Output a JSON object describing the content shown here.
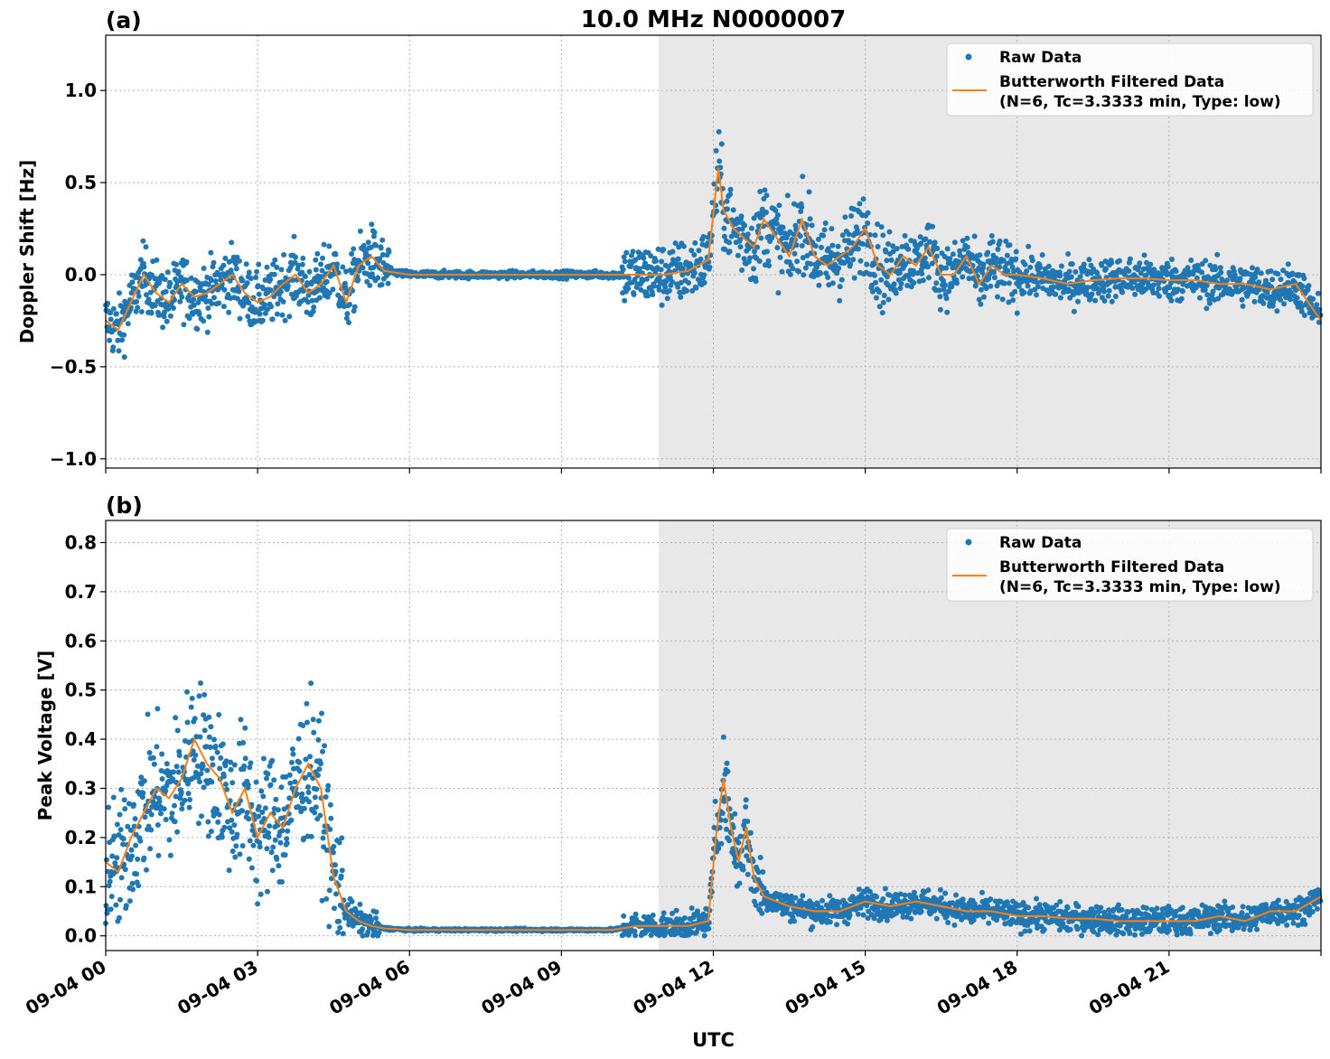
{
  "title": "10.0 MHz N0000007",
  "xlabel": "UTC",
  "x_ticks": [
    "09-04 00",
    "09-04 03",
    "09-04 06",
    "09-04 09",
    "09-04 12",
    "09-04 15",
    "09-04 18",
    "09-04 21"
  ],
  "x_tick_hours": [
    0,
    3,
    6,
    9,
    12,
    15,
    18,
    21
  ],
  "xlim_hours": [
    0,
    24
  ],
  "colors": {
    "raw": "#1f77b4",
    "filtered": "#ff7f0e",
    "night_shade": "#e8e8e8",
    "grid": "#b0b0b0"
  },
  "legend": {
    "raw_label": "Raw Data",
    "filtered_line1": "Butterworth Filtered Data",
    "filtered_line2": "(N=6, Tc=3.3333 min, Type: low)",
    "placement": "upper-right"
  },
  "shaded_region_hours": [
    10.92,
    24
  ],
  "chart_data": [
    {
      "type": "scatter",
      "panel_label": "(a)",
      "ylabel": "Doppler Shift [Hz]",
      "ylim": [
        -1.05,
        1.3
      ],
      "y_ticks": [
        -1.0,
        -0.5,
        0.0,
        0.5,
        1.0
      ],
      "y_tick_labels": [
        "−1.0",
        "−0.5",
        "0.0",
        "0.5",
        "1.0"
      ],
      "grid": true,
      "series": [
        {
          "name": "Butterworth Filtered Data",
          "x_hours": [
            0,
            0.25,
            0.5,
            0.75,
            1.0,
            1.25,
            1.5,
            1.75,
            2.0,
            2.25,
            2.5,
            2.75,
            3.0,
            3.25,
            3.5,
            3.75,
            4.0,
            4.25,
            4.5,
            4.75,
            5.0,
            5.25,
            5.5,
            6.0,
            7.0,
            8.0,
            9.0,
            10.0,
            10.5,
            11.0,
            11.5,
            11.9,
            12.1,
            12.2,
            12.4,
            12.6,
            12.8,
            13.0,
            13.25,
            13.5,
            13.75,
            14.0,
            14.25,
            14.5,
            14.75,
            15.0,
            15.25,
            15.5,
            15.75,
            16.0,
            16.25,
            16.5,
            16.75,
            17.0,
            17.25,
            17.5,
            17.75,
            18.0,
            18.5,
            19.0,
            19.5,
            20.0,
            20.5,
            21.0,
            21.5,
            22.0,
            22.5,
            23.0,
            23.5,
            24.0
          ],
          "y": [
            -0.25,
            -0.3,
            -0.15,
            0.0,
            -0.1,
            -0.15,
            -0.05,
            -0.12,
            -0.1,
            -0.05,
            0.0,
            -0.1,
            -0.15,
            -0.12,
            -0.05,
            0.0,
            -0.1,
            -0.05,
            0.05,
            -0.15,
            0.05,
            0.1,
            0.02,
            0.0,
            0.0,
            0.0,
            0.0,
            0.0,
            0.0,
            0.0,
            0.02,
            0.08,
            0.58,
            0.35,
            0.25,
            0.2,
            0.15,
            0.3,
            0.2,
            0.1,
            0.3,
            0.1,
            0.05,
            0.1,
            0.15,
            0.25,
            0.05,
            0.0,
            0.1,
            0.05,
            0.15,
            0.0,
            0.0,
            0.1,
            -0.05,
            0.05,
            0.0,
            0.0,
            -0.02,
            -0.05,
            -0.03,
            -0.02,
            -0.02,
            -0.03,
            -0.03,
            -0.05,
            -0.05,
            -0.08,
            -0.05,
            -0.25
          ]
        },
        {
          "name": "Raw Data",
          "kind": "points",
          "note_free": true
        }
      ]
    },
    {
      "type": "scatter",
      "panel_label": "(b)",
      "ylabel": "Peak Voltage [V]",
      "ylim": [
        -0.03,
        0.845
      ],
      "y_ticks": [
        0.0,
        0.1,
        0.2,
        0.3,
        0.4,
        0.5,
        0.6,
        0.7,
        0.8
      ],
      "y_tick_labels": [
        "0.0",
        "0.1",
        "0.2",
        "0.3",
        "0.4",
        "0.5",
        "0.6",
        "0.7",
        "0.8"
      ],
      "grid": true,
      "series": [
        {
          "name": "Butterworth Filtered Data",
          "x_hours": [
            0,
            0.25,
            0.5,
            0.75,
            1.0,
            1.25,
            1.5,
            1.75,
            2.0,
            2.25,
            2.5,
            2.75,
            3.0,
            3.25,
            3.5,
            3.75,
            4.0,
            4.25,
            4.5,
            4.75,
            5.0,
            5.25,
            5.5,
            6.0,
            7.0,
            8.0,
            9.0,
            10.0,
            10.5,
            11.0,
            11.5,
            11.9,
            12.05,
            12.2,
            12.35,
            12.5,
            12.65,
            12.8,
            13.0,
            13.5,
            14.0,
            14.5,
            15.0,
            15.5,
            16.0,
            16.5,
            17.0,
            17.5,
            18.0,
            18.5,
            19.0,
            19.5,
            20.0,
            20.5,
            21.0,
            21.5,
            22.0,
            22.5,
            23.0,
            23.5,
            24.0
          ],
          "y": [
            0.15,
            0.13,
            0.2,
            0.25,
            0.3,
            0.28,
            0.32,
            0.4,
            0.35,
            0.32,
            0.25,
            0.3,
            0.2,
            0.25,
            0.22,
            0.3,
            0.35,
            0.3,
            0.12,
            0.05,
            0.03,
            0.02,
            0.015,
            0.012,
            0.012,
            0.012,
            0.012,
            0.012,
            0.02,
            0.02,
            0.02,
            0.03,
            0.2,
            0.32,
            0.22,
            0.15,
            0.22,
            0.12,
            0.08,
            0.06,
            0.05,
            0.05,
            0.07,
            0.06,
            0.07,
            0.06,
            0.05,
            0.05,
            0.04,
            0.04,
            0.035,
            0.035,
            0.03,
            0.03,
            0.03,
            0.03,
            0.04,
            0.03,
            0.05,
            0.05,
            0.08
          ]
        },
        {
          "name": "Raw Data",
          "kind": "points",
          "note_free": true
        }
      ]
    }
  ]
}
